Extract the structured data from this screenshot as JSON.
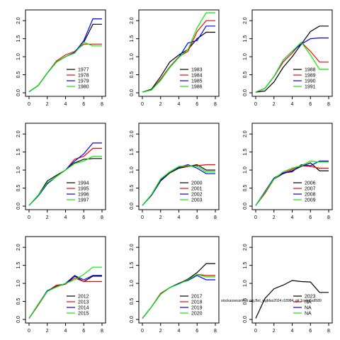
{
  "figure": {
    "colors": {
      "s1": "#000000",
      "s2": "#ff0000",
      "s3": "#0000ff",
      "s4": "#00ee00"
    },
    "watermark": "stockassessment.org,Bol_wgbfas2024,r18984, git 1cc4a5a9589"
  },
  "chart_data": [
    {
      "type": "line",
      "xlim": [
        0,
        8
      ],
      "ylim": [
        0,
        2.2
      ],
      "xticks": [
        "0",
        "2",
        "4",
        "6",
        "8"
      ],
      "yticks": [
        "0.0",
        "0.5",
        "1.0",
        "1.5",
        "2.0"
      ],
      "legend_position": "bottom-right",
      "series": [
        {
          "name": "1977",
          "x": [
            0,
            1,
            2,
            3,
            4,
            5,
            6,
            7,
            8
          ],
          "y": [
            0.03,
            0.2,
            0.55,
            0.85,
            1.0,
            1.12,
            1.4,
            1.9,
            1.9
          ]
        },
        {
          "name": "1978",
          "x": [
            0,
            1,
            2,
            3,
            4,
            5,
            6,
            7,
            8
          ],
          "y": [
            0.03,
            0.2,
            0.55,
            0.88,
            1.05,
            1.15,
            1.35,
            1.35,
            1.35
          ]
        },
        {
          "name": "1979",
          "x": [
            0,
            1,
            2,
            3,
            4,
            5,
            6,
            7,
            8
          ],
          "y": [
            0.03,
            0.2,
            0.55,
            0.85,
            1.0,
            1.12,
            1.45,
            2.05,
            2.05
          ]
        },
        {
          "name": "1980",
          "x": [
            0,
            1,
            2,
            3,
            4,
            5,
            6,
            7,
            8
          ],
          "y": [
            0.03,
            0.2,
            0.55,
            0.85,
            1.0,
            1.1,
            1.4,
            1.3,
            1.3
          ]
        }
      ]
    },
    {
      "type": "line",
      "xlim": [
        0,
        8
      ],
      "ylim": [
        0,
        2.2
      ],
      "xticks": [
        "0",
        "2",
        "4",
        "6",
        "8"
      ],
      "yticks": [
        "0.0",
        "0.5",
        "1.0",
        "1.5",
        "2.0"
      ],
      "legend_position": "bottom-right",
      "series": [
        {
          "name": "1983",
          "x": [
            0,
            1,
            2,
            3,
            4,
            5,
            6,
            7,
            8
          ],
          "y": [
            0.02,
            0.1,
            0.45,
            0.85,
            1.05,
            1.2,
            1.5,
            1.68,
            1.68
          ]
        },
        {
          "name": "1984",
          "x": [
            0,
            1,
            2,
            3,
            4,
            5,
            6,
            7,
            8
          ],
          "y": [
            0.02,
            0.08,
            0.38,
            0.72,
            1.0,
            1.15,
            1.7,
            2.0,
            2.0
          ]
        },
        {
          "name": "1985",
          "x": [
            0,
            1,
            2,
            3,
            4,
            5,
            6,
            7,
            8
          ],
          "y": [
            0.02,
            0.08,
            0.35,
            0.7,
            0.98,
            1.38,
            1.45,
            1.85,
            1.85
          ]
        },
        {
          "name": "1986",
          "x": [
            0,
            1,
            2,
            3,
            4,
            5,
            6,
            7,
            8
          ],
          "y": [
            0.02,
            0.08,
            0.35,
            0.7,
            0.98,
            1.2,
            1.8,
            2.22,
            2.22
          ]
        }
      ]
    },
    {
      "type": "line",
      "xlim": [
        0,
        8
      ],
      "ylim": [
        0,
        2.2
      ],
      "xticks": [
        "0",
        "2",
        "4",
        "6",
        "8"
      ],
      "yticks": [
        "0.0",
        "0.5",
        "1.0",
        "1.5",
        "2.0"
      ],
      "legend_position": "bottom-right",
      "series": [
        {
          "name": "1988",
          "x": [
            0,
            1,
            2,
            3,
            4,
            5,
            6,
            7,
            8
          ],
          "y": [
            0.02,
            0.05,
            0.3,
            0.7,
            1.0,
            1.35,
            1.7,
            1.85,
            1.85
          ]
        },
        {
          "name": "1989",
          "x": [
            0,
            1,
            2,
            3,
            4,
            5,
            6,
            7,
            8
          ],
          "y": [
            0.02,
            0.12,
            0.45,
            0.85,
            1.1,
            1.4,
            1.15,
            0.85,
            0.85
          ]
        },
        {
          "name": "1990",
          "x": [
            0,
            1,
            2,
            3,
            4,
            5,
            6,
            7,
            8
          ],
          "y": [
            0.02,
            0.12,
            0.45,
            0.9,
            1.15,
            1.35,
            1.5,
            1.52,
            1.52
          ]
        },
        {
          "name": "1991",
          "x": [
            0,
            1,
            2,
            3,
            4,
            5,
            6,
            7,
            8
          ],
          "y": [
            0.02,
            0.12,
            0.45,
            0.9,
            1.15,
            1.4,
            1.05,
            0.65,
            0.65
          ]
        }
      ]
    },
    {
      "type": "line",
      "xlim": [
        0,
        8
      ],
      "ylim": [
        0,
        2.2
      ],
      "xticks": [
        "0",
        "2",
        "4",
        "6",
        "8"
      ],
      "yticks": [
        "0.0",
        "0.5",
        "1.0",
        "1.5",
        "2.0"
      ],
      "legend_position": "bottom-right",
      "series": [
        {
          "name": "1994",
          "x": [
            0,
            1,
            2,
            3,
            4,
            5,
            6,
            7,
            8
          ],
          "y": [
            0.02,
            0.3,
            0.7,
            0.85,
            1.0,
            1.2,
            1.3,
            1.32,
            1.32
          ]
        },
        {
          "name": "1995",
          "x": [
            0,
            1,
            2,
            3,
            4,
            5,
            6,
            7,
            8
          ],
          "y": [
            0.02,
            0.28,
            0.62,
            0.82,
            1.0,
            1.3,
            1.38,
            1.6,
            1.6
          ]
        },
        {
          "name": "1996",
          "x": [
            0,
            1,
            2,
            3,
            4,
            5,
            6,
            7,
            8
          ],
          "y": [
            0.02,
            0.28,
            0.62,
            0.82,
            1.0,
            1.25,
            1.45,
            1.75,
            1.75
          ]
        },
        {
          "name": "1997",
          "x": [
            0,
            1,
            2,
            3,
            4,
            5,
            6,
            7,
            8
          ],
          "y": [
            0.02,
            0.3,
            0.65,
            0.82,
            1.0,
            1.18,
            1.25,
            1.38,
            1.38
          ]
        }
      ]
    },
    {
      "type": "line",
      "xlim": [
        0,
        8
      ],
      "ylim": [
        0,
        2.2
      ],
      "xticks": [
        "0",
        "2",
        "4",
        "6",
        "8"
      ],
      "yticks": [
        "0.0",
        "0.5",
        "1.0",
        "1.5",
        "2.0"
      ],
      "legend_position": "bottom-right",
      "series": [
        {
          "name": "2000",
          "x": [
            0,
            1,
            2,
            3,
            4,
            5,
            6,
            7,
            8
          ],
          "y": [
            0.02,
            0.3,
            0.7,
            0.92,
            1.05,
            1.1,
            1.15,
            1.0,
            1.0
          ]
        },
        {
          "name": "2001",
          "x": [
            0,
            1,
            2,
            3,
            4,
            5,
            6,
            7,
            8
          ],
          "y": [
            0.02,
            0.32,
            0.75,
            0.95,
            1.08,
            1.1,
            1.12,
            1.15,
            1.15
          ]
        },
        {
          "name": "2002",
          "x": [
            0,
            1,
            2,
            3,
            4,
            5,
            6,
            7,
            8
          ],
          "y": [
            0.02,
            0.3,
            0.72,
            0.95,
            1.08,
            1.15,
            1.05,
            0.9,
            0.9
          ]
        },
        {
          "name": "2003",
          "x": [
            0,
            1,
            2,
            3,
            4,
            5,
            6,
            7,
            8
          ],
          "y": [
            0.02,
            0.32,
            0.75,
            0.95,
            1.1,
            1.12,
            1.1,
            0.95,
            0.95
          ]
        }
      ]
    },
    {
      "type": "line",
      "xlim": [
        0,
        8
      ],
      "ylim": [
        0,
        2.2
      ],
      "xticks": [
        "0",
        "2",
        "4",
        "6",
        "8"
      ],
      "yticks": [
        "0.0",
        "0.5",
        "1.0",
        "1.5",
        "2.0"
      ],
      "legend_position": "bottom-right",
      "series": [
        {
          "name": "2006",
          "x": [
            0,
            1,
            2,
            3,
            4,
            5,
            6,
            7,
            8
          ],
          "y": [
            0.02,
            0.35,
            0.75,
            0.9,
            0.98,
            1.1,
            1.2,
            0.98,
            0.98
          ]
        },
        {
          "name": "2007",
          "x": [
            0,
            1,
            2,
            3,
            4,
            5,
            6,
            7,
            8
          ],
          "y": [
            0.02,
            0.35,
            0.75,
            0.92,
            1.02,
            1.12,
            1.1,
            1.05,
            1.05
          ]
        },
        {
          "name": "2008",
          "x": [
            0,
            1,
            2,
            3,
            4,
            5,
            6,
            7,
            8
          ],
          "y": [
            0.02,
            0.4,
            0.78,
            0.92,
            0.95,
            1.15,
            1.12,
            1.25,
            1.25
          ]
        },
        {
          "name": "2009",
          "x": [
            0,
            1,
            2,
            3,
            4,
            5,
            6,
            7,
            8
          ],
          "y": [
            0.02,
            0.38,
            0.75,
            0.95,
            1.05,
            1.12,
            1.25,
            1.22,
            1.22
          ]
        }
      ]
    },
    {
      "type": "line",
      "xlim": [
        0,
        8
      ],
      "ylim": [
        0,
        2.2
      ],
      "xticks": [
        "0",
        "2",
        "4",
        "6",
        "8"
      ],
      "yticks": [
        "0.0",
        "0.5",
        "1.0",
        "1.5",
        "2.0"
      ],
      "legend_position": "bottom-right",
      "series": [
        {
          "name": "2012",
          "x": [
            0,
            1,
            2,
            3,
            4,
            5,
            6,
            7,
            8
          ],
          "y": [
            0.03,
            0.4,
            0.78,
            0.92,
            0.98,
            1.2,
            1.05,
            1.2,
            1.2
          ]
        },
        {
          "name": "2013",
          "x": [
            0,
            1,
            2,
            3,
            4,
            5,
            6,
            7,
            8
          ],
          "y": [
            0.03,
            0.4,
            0.78,
            0.95,
            0.98,
            1.15,
            1.05,
            1.05,
            1.05
          ]
        },
        {
          "name": "2014",
          "x": [
            0,
            1,
            2,
            3,
            4,
            5,
            6,
            7,
            8
          ],
          "y": [
            0.03,
            0.42,
            0.8,
            0.9,
            1.0,
            1.22,
            1.1,
            1.22,
            1.22
          ]
        },
        {
          "name": "2015",
          "x": [
            0,
            1,
            2,
            3,
            4,
            5,
            6,
            7,
            8
          ],
          "y": [
            0.03,
            0.42,
            0.78,
            0.9,
            1.0,
            1.1,
            1.25,
            1.45,
            1.45
          ]
        }
      ]
    },
    {
      "type": "line",
      "xlim": [
        0,
        8
      ],
      "ylim": [
        0,
        2.2
      ],
      "xticks": [
        "0",
        "2",
        "4",
        "6",
        "8"
      ],
      "yticks": [
        "0.0",
        "0.5",
        "1.0",
        "1.5",
        "2.0"
      ],
      "legend_position": "bottom-right",
      "series": [
        {
          "name": "2017",
          "x": [
            0,
            1,
            2,
            3,
            4,
            5,
            6,
            7,
            8
          ],
          "y": [
            0.03,
            0.35,
            0.72,
            0.88,
            1.0,
            1.12,
            1.3,
            1.55,
            1.55
          ]
        },
        {
          "name": "2018",
          "x": [
            0,
            1,
            2,
            3,
            4,
            5,
            6,
            7,
            8
          ],
          "y": [
            0.03,
            0.35,
            0.72,
            0.88,
            1.0,
            1.1,
            1.25,
            1.22,
            1.22
          ]
        },
        {
          "name": "2019",
          "x": [
            0,
            1,
            2,
            3,
            4,
            5,
            6,
            7,
            8
          ],
          "y": [
            0.03,
            0.35,
            0.7,
            0.88,
            1.0,
            1.08,
            1.22,
            1.1,
            1.1
          ]
        },
        {
          "name": "2020",
          "x": [
            0,
            1,
            2,
            3,
            4,
            5,
            6,
            7,
            8
          ],
          "y": [
            0.03,
            0.35,
            0.7,
            0.88,
            0.98,
            1.1,
            1.25,
            1.18,
            1.18
          ]
        }
      ]
    },
    {
      "type": "line",
      "xlim": [
        0,
        8
      ],
      "ylim": [
        0,
        2.2
      ],
      "xticks": [
        "0",
        "2",
        "4",
        "6",
        "8"
      ],
      "yticks": [
        "0.0",
        "0.5",
        "1.0",
        "1.5",
        "2.0"
      ],
      "legend_position": "bottom-right",
      "series": [
        {
          "name": "2023",
          "x": [
            0,
            1,
            2,
            3,
            4,
            5,
            6,
            7,
            8
          ],
          "y": [
            0.03,
            0.58,
            0.85,
            0.95,
            1.08,
            1.05,
            1.04,
            0.75,
            0.75
          ]
        },
        {
          "name": "NA",
          "x": [],
          "y": []
        },
        {
          "name": "NA",
          "x": [],
          "y": []
        },
        {
          "name": "NA",
          "x": [],
          "y": []
        }
      ]
    }
  ]
}
